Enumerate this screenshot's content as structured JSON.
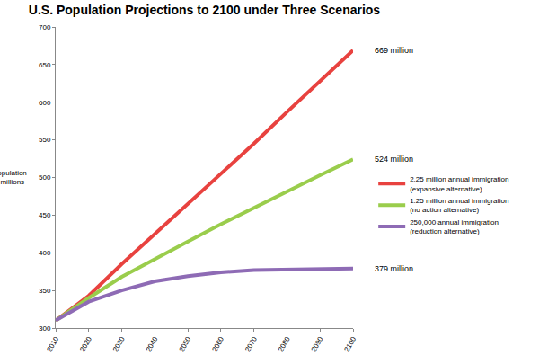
{
  "chart_data": {
    "type": "line",
    "title": "U.S. Population Projections to 2100 under Three Scenarios",
    "y_label": "Population in millions",
    "x": [
      2010,
      2020,
      2030,
      2040,
      2050,
      2060,
      2070,
      2080,
      2090,
      2100
    ],
    "series": [
      {
        "name": "2.25 million annual immigration (expansive alternative)",
        "color": "#e8423f",
        "values": [
          310,
          343,
          385,
          425,
          465,
          505,
          545,
          587,
          628,
          669
        ]
      },
      {
        "name": "1.25 million annual immigration (no action alternative)",
        "color": "#9acd4c",
        "values": [
          310,
          340,
          368,
          392,
          415,
          438,
          460,
          482,
          503,
          524
        ]
      },
      {
        "name": "250,000 annual immigration (reduction alternative)",
        "color": "#8e6bb5",
        "values": [
          310,
          335,
          350,
          362,
          369,
          374,
          377,
          378,
          379,
          379
        ]
      }
    ],
    "annotations": [
      "669 million",
      "524 million",
      "379 million"
    ],
    "xlim": [
      2010,
      2100
    ],
    "xticks": [
      2010,
      2020,
      2030,
      2040,
      2050,
      2060,
      2070,
      2080,
      2090,
      2100
    ],
    "ylim": [
      300,
      700
    ],
    "yticks": [
      300,
      350,
      400,
      450,
      500,
      550,
      600,
      650,
      700
    ],
    "grid": false,
    "legend": "right"
  }
}
